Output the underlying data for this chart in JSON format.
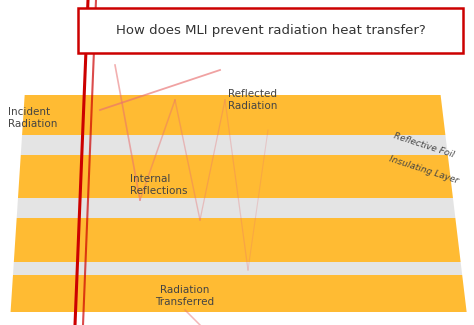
{
  "title": "How does MLI prevent radiation heat transfer?",
  "title_box_color": "#cc0000",
  "title_font_size": 9.5,
  "bg_color": "#ffffff",
  "layer_color": "#FFBB33",
  "layer_alpha": 1.0,
  "insulating_color": "#e0e0e0",
  "insulating_alpha": 0.85,
  "labels": {
    "incident": "Incident\nRadiation",
    "reflected": "Reflected\nRadiation",
    "internal": "Internal\nReflections",
    "transferred": "Radiation\nTransferred",
    "foil": "Reflective Foil",
    "insulating": "Insulating Layer"
  },
  "label_color": "#444444",
  "red_line_color": "#cc0000",
  "pink_line_color": "#e87070"
}
